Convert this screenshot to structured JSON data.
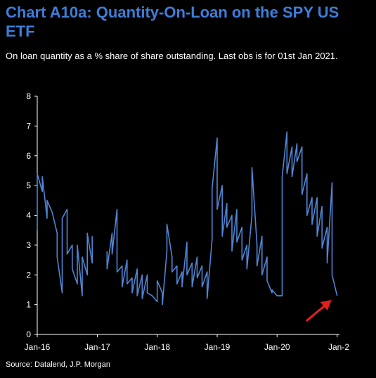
{
  "title": "Chart A10a: Quantity-On-Loan on the SPY US ETF",
  "subtitle": "On loan quantity as a % share of share outstanding. Last obs is for 01st Jan 2021.",
  "source": "Source: Datalend, J.P. Morgan",
  "chart_data": {
    "type": "line",
    "title": "Chart A10a: Quantity-On-Loan on the SPY US ETF",
    "xlabel": "",
    "ylabel": "",
    "ylim": [
      0,
      8
    ],
    "yticks": [
      "0",
      "1",
      "2",
      "3",
      "4",
      "5",
      "6",
      "7",
      "8"
    ],
    "xticks": [
      "Jan-16",
      "Jan-17",
      "Jan-18",
      "Jan-19",
      "Jan-20",
      "Jan-2"
    ],
    "grid": false,
    "line_color": "#4f86d4",
    "annotation": "red arrow pointing at last observation",
    "series": [
      {
        "segments": [
          [
            [
              "2016-01",
              3.5
            ],
            [
              "2016-01",
              5.4
            ],
            [
              "2016-02",
              4.8
            ],
            [
              "2016-02",
              5.3
            ],
            [
              "2016-03",
              3.9
            ],
            [
              "2016-03",
              4.5
            ],
            [
              "2016-04",
              4.1
            ],
            [
              "2016-05",
              3.4
            ],
            [
              "2016-05",
              2.6
            ],
            [
              "2016-06",
              1.4
            ],
            [
              "2016-06",
              3.9
            ],
            [
              "2016-07",
              4.2
            ],
            [
              "2016-07",
              2.7
            ],
            [
              "2016-08",
              3.0
            ],
            [
              "2016-08",
              2.2
            ],
            [
              "2016-09",
              1.7
            ],
            [
              "2016-09",
              3.0
            ],
            [
              "2016-10",
              1.3
            ],
            [
              "2016-10",
              2.6
            ],
            [
              "2016-11",
              2.0
            ],
            [
              "2016-11",
              3.4
            ],
            [
              "2016-12",
              2.4
            ],
            [
              "2016-12",
              3.3
            ]
          ],
          [
            [
              "2017-03",
              2.8
            ],
            [
              "2017-03",
              2.2
            ],
            [
              "2017-04",
              3.4
            ],
            [
              "2017-04",
              2.7
            ],
            [
              "2017-05",
              4.2
            ],
            [
              "2017-05",
              2.1
            ],
            [
              "2017-06",
              2.3
            ],
            [
              "2017-06",
              1.6
            ],
            [
              "2017-07",
              2.5
            ],
            [
              "2017-07",
              1.7
            ],
            [
              "2017-08",
              1.9
            ],
            [
              "2017-08",
              1.4
            ],
            [
              "2017-09",
              2.2
            ],
            [
              "2017-09",
              1.3
            ],
            [
              "2017-10",
              2.0
            ],
            [
              "2017-10",
              1.2
            ],
            [
              "2017-11",
              2.0
            ],
            [
              "2017-11",
              1.4
            ],
            [
              "2017-12",
              1.3
            ],
            [
              "2018-01",
              1.1
            ],
            [
              "2018-01",
              1.8
            ],
            [
              "2018-02",
              1.4
            ],
            [
              "2018-02",
              1.0
            ],
            [
              "2018-03",
              2.8
            ],
            [
              "2018-03",
              3.7
            ],
            [
              "2018-04",
              2.6
            ],
            [
              "2018-04",
              2.1
            ],
            [
              "2018-05",
              2.3
            ],
            [
              "2018-05",
              1.7
            ],
            [
              "2018-06",
              2.1
            ],
            [
              "2018-06",
              1.6
            ],
            [
              "2018-07",
              3.1
            ],
            [
              "2018-07",
              2.0
            ],
            [
              "2018-08",
              2.4
            ],
            [
              "2018-08",
              1.6
            ],
            [
              "2018-09",
              2.6
            ],
            [
              "2018-09",
              1.9
            ],
            [
              "2018-10",
              2.3
            ],
            [
              "2018-10",
              1.6
            ],
            [
              "2018-11",
              2.1
            ],
            [
              "2018-11",
              1.2
            ],
            [
              "2018-12",
              3.2
            ],
            [
              "2018-12",
              4.9
            ],
            [
              "2019-01",
              6.6
            ],
            [
              "2019-01",
              4.2
            ],
            [
              "2019-02",
              5.0
            ],
            [
              "2019-02",
              3.3
            ],
            [
              "2019-03",
              4.4
            ],
            [
              "2019-03",
              3.6
            ],
            [
              "2019-04",
              4.0
            ],
            [
              "2019-04",
              2.8
            ],
            [
              "2019-05",
              4.2
            ],
            [
              "2019-05",
              3.1
            ],
            [
              "2019-06",
              3.6
            ],
            [
              "2019-06",
              2.5
            ],
            [
              "2019-07",
              3.0
            ],
            [
              "2019-07",
              2.2
            ],
            [
              "2019-08",
              4.0
            ],
            [
              "2019-08",
              5.6
            ],
            [
              "2019-09",
              3.0
            ],
            [
              "2019-09",
              2.3
            ],
            [
              "2019-10",
              3.3
            ],
            [
              "2019-10",
              2.0
            ],
            [
              "2019-11",
              2.6
            ],
            [
              "2019-11",
              1.8
            ],
            [
              "2019-12",
              1.4
            ],
            [
              "2019-12",
              1.5
            ],
            [
              "2020-01",
              1.3
            ],
            [
              "2020-02",
              1.3
            ],
            [
              "2020-02",
              5.3
            ],
            [
              "2020-03",
              6.8
            ],
            [
              "2020-03",
              5.4
            ],
            [
              "2020-04",
              6.3
            ],
            [
              "2020-04",
              5.3
            ],
            [
              "2020-05",
              6.4
            ],
            [
              "2020-05",
              5.8
            ],
            [
              "2020-06",
              6.3
            ],
            [
              "2020-06",
              4.7
            ],
            [
              "2020-07",
              5.4
            ],
            [
              "2020-07",
              4.0
            ],
            [
              "2020-08",
              4.6
            ],
            [
              "2020-08",
              3.7
            ],
            [
              "2020-09",
              4.6
            ],
            [
              "2020-09",
              3.3
            ],
            [
              "2020-10",
              4.3
            ],
            [
              "2020-10",
              2.9
            ],
            [
              "2020-11",
              3.6
            ],
            [
              "2020-11",
              2.4
            ],
            [
              "2020-12",
              5.1
            ],
            [
              "2020-12",
              2.0
            ],
            [
              "2021-01",
              1.3
            ]
          ]
        ]
      }
    ]
  }
}
